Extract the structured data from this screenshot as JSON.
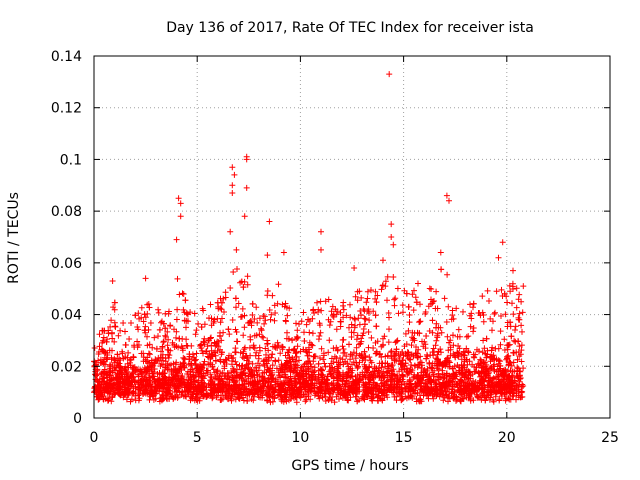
{
  "chart_data": {
    "type": "scatter",
    "title": "Day 136 of 2017, Rate Of TEC Index for receiver ista",
    "xlabel": "GPS time / hours",
    "ylabel": "ROTI / TECUs",
    "xlim": [
      0,
      25
    ],
    "ylim": [
      0,
      0.14
    ],
    "xticks": [
      0,
      5,
      10,
      15,
      20,
      25
    ],
    "yticks": [
      0,
      0.02,
      0.04,
      0.06,
      0.08,
      0.1,
      0.12,
      0.14
    ],
    "xtick_labels": [
      "0",
      "5",
      "10",
      "15",
      "20",
      "25"
    ],
    "ytick_labels": [
      "0",
      "0.02",
      "0.04",
      "0.06",
      "0.08",
      "0.1",
      "0.12",
      "0.14"
    ],
    "grid": true,
    "marker": "+",
    "color": "#ff0000",
    "data_range_hours": [
      0,
      20.8
    ],
    "notable_points": [
      {
        "x": 14.3,
        "y": 0.133
      },
      {
        "x": 7.4,
        "y": 0.101
      },
      {
        "x": 7.4,
        "y": 0.1
      },
      {
        "x": 6.7,
        "y": 0.097
      },
      {
        "x": 6.8,
        "y": 0.094
      },
      {
        "x": 6.7,
        "y": 0.09
      },
      {
        "x": 7.4,
        "y": 0.089
      },
      {
        "x": 6.7,
        "y": 0.087
      },
      {
        "x": 4.1,
        "y": 0.085
      },
      {
        "x": 4.2,
        "y": 0.083
      },
      {
        "x": 17.1,
        "y": 0.086
      },
      {
        "x": 17.2,
        "y": 0.084
      },
      {
        "x": 4.2,
        "y": 0.078
      },
      {
        "x": 7.3,
        "y": 0.078
      },
      {
        "x": 8.5,
        "y": 0.076
      },
      {
        "x": 14.4,
        "y": 0.075
      },
      {
        "x": 11.0,
        "y": 0.072
      },
      {
        "x": 6.6,
        "y": 0.072
      },
      {
        "x": 14.4,
        "y": 0.07
      },
      {
        "x": 4.0,
        "y": 0.069
      },
      {
        "x": 19.8,
        "y": 0.068
      },
      {
        "x": 14.5,
        "y": 0.067
      },
      {
        "x": 11.0,
        "y": 0.065
      },
      {
        "x": 6.9,
        "y": 0.065
      },
      {
        "x": 8.4,
        "y": 0.063
      },
      {
        "x": 9.2,
        "y": 0.064
      },
      {
        "x": 16.8,
        "y": 0.064
      },
      {
        "x": 19.6,
        "y": 0.062
      },
      {
        "x": 14.0,
        "y": 0.061
      },
      {
        "x": 12.6,
        "y": 0.058
      },
      {
        "x": 20.3,
        "y": 0.057
      },
      {
        "x": 2.5,
        "y": 0.054
      },
      {
        "x": 0.9,
        "y": 0.053
      },
      {
        "x": 15.7,
        "y": 0.052
      },
      {
        "x": 20.8,
        "y": 0.051
      }
    ],
    "envelope": {
      "x": [
        0,
        0.5,
        1,
        1.5,
        2,
        2.5,
        3,
        3.5,
        4,
        4.5,
        5,
        5.5,
        6,
        6.5,
        7,
        7.5,
        8,
        8.5,
        9,
        9.5,
        10,
        10.5,
        11,
        11.5,
        12,
        12.5,
        13,
        13.5,
        14,
        14.5,
        15,
        15.5,
        16,
        16.5,
        17,
        17.5,
        18,
        18.5,
        19,
        19.5,
        20,
        20.5,
        20.8
      ],
      "typical_max": [
        0.03,
        0.035,
        0.045,
        0.035,
        0.04,
        0.045,
        0.045,
        0.04,
        0.06,
        0.045,
        0.04,
        0.045,
        0.045,
        0.055,
        0.06,
        0.055,
        0.045,
        0.05,
        0.055,
        0.045,
        0.04,
        0.045,
        0.05,
        0.045,
        0.045,
        0.05,
        0.05,
        0.05,
        0.055,
        0.055,
        0.05,
        0.05,
        0.045,
        0.055,
        0.06,
        0.05,
        0.045,
        0.045,
        0.05,
        0.055,
        0.055,
        0.05,
        0.045
      ]
    }
  }
}
